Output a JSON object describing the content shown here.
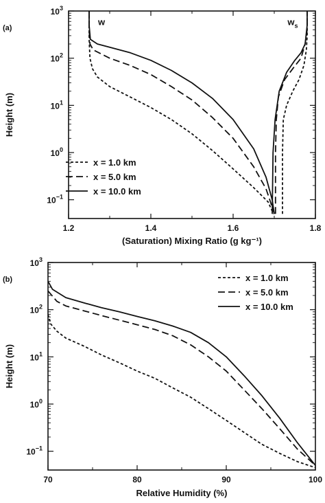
{
  "chart_data": [
    {
      "type": "line",
      "panel_label": "(a)",
      "xlabel": "(Saturation) Mixing Ratio (g kg⁻¹)",
      "ylabel": "Height (m)",
      "xlim": [
        1.2,
        1.8
      ],
      "ylim": [
        0.04,
        1000
      ],
      "yscale": "log",
      "xticks": [
        {
          "value": 1.2,
          "label": "1.2"
        },
        {
          "value": 1.4,
          "label": "1.4"
        },
        {
          "value": 1.6,
          "label": "1.6"
        },
        {
          "value": 1.8,
          "label": "1.8"
        }
      ],
      "yticks": [
        {
          "value": 0.1,
          "base": "10",
          "exp": "−1"
        },
        {
          "value": 1,
          "base": "10",
          "exp": "0"
        },
        {
          "value": 10,
          "base": "10",
          "exp": "1"
        },
        {
          "value": 100,
          "base": "10",
          "exp": "2"
        },
        {
          "value": 1000,
          "base": "10",
          "exp": "3"
        }
      ],
      "annotations": [
        {
          "text": "w",
          "sub": "",
          "x": 1.28,
          "y": 500
        },
        {
          "text": "w",
          "sub": "s",
          "x": 1.745,
          "y": 500
        }
      ],
      "legend": {
        "position": "lower-left"
      },
      "series": [
        {
          "name": "x = 1.0 km",
          "dash": "short",
          "curve": "w",
          "points": [
            [
              1.25,
              1000
            ],
            [
              1.25,
              250
            ],
            [
              1.252,
              100
            ],
            [
              1.258,
              60
            ],
            [
              1.27,
              40
            ],
            [
              1.3,
              25
            ],
            [
              1.35,
              15
            ],
            [
              1.4,
              9
            ],
            [
              1.45,
              5
            ],
            [
              1.5,
              2.5
            ],
            [
              1.55,
              1.1
            ],
            [
              1.6,
              0.45
            ],
            [
              1.65,
              0.18
            ],
            [
              1.685,
              0.09
            ],
            [
              1.698,
              0.05
            ]
          ]
        },
        {
          "name": "x = 5.0 km",
          "dash": "long",
          "curve": "w",
          "points": [
            [
              1.25,
              1000
            ],
            [
              1.25,
              400
            ],
            [
              1.252,
              200
            ],
            [
              1.26,
              150
            ],
            [
              1.3,
              100
            ],
            [
              1.35,
              70
            ],
            [
              1.4,
              45
            ],
            [
              1.45,
              25
            ],
            [
              1.5,
              13
            ],
            [
              1.55,
              5.5
            ],
            [
              1.6,
              2
            ],
            [
              1.65,
              0.5
            ],
            [
              1.68,
              0.17
            ],
            [
              1.695,
              0.07
            ],
            [
              1.7,
              0.05
            ]
          ]
        },
        {
          "name": "x = 10.0 km",
          "dash": "solid",
          "curve": "w",
          "points": [
            [
              1.25,
              1000
            ],
            [
              1.25,
              500
            ],
            [
              1.253,
              250
            ],
            [
              1.27,
              200
            ],
            [
              1.3,
              170
            ],
            [
              1.35,
              130
            ],
            [
              1.4,
              90
            ],
            [
              1.45,
              55
            ],
            [
              1.5,
              30
            ],
            [
              1.55,
              14
            ],
            [
              1.6,
              5
            ],
            [
              1.65,
              1.2
            ],
            [
              1.68,
              0.3
            ],
            [
              1.695,
              0.1
            ],
            [
              1.7,
              0.05
            ]
          ]
        },
        {
          "name": "x = 1.0 km",
          "dash": "short",
          "curve": "ws",
          "points": [
            [
              1.72,
              0.05
            ],
            [
              1.72,
              1
            ],
            [
              1.722,
              5
            ],
            [
              1.73,
              10
            ],
            [
              1.745,
              20
            ],
            [
              1.76,
              35
            ],
            [
              1.772,
              70
            ],
            [
              1.778,
              150
            ],
            [
              1.78,
              300
            ],
            [
              1.78,
              1000
            ]
          ]
        },
        {
          "name": "x = 5.0 km",
          "dash": "long",
          "curve": "ws",
          "points": [
            [
              1.703,
              0.05
            ],
            [
              1.703,
              1
            ],
            [
              1.705,
              5
            ],
            [
              1.71,
              15
            ],
            [
              1.725,
              35
            ],
            [
              1.745,
              60
            ],
            [
              1.765,
              100
            ],
            [
              1.775,
              200
            ],
            [
              1.78,
              400
            ],
            [
              1.78,
              1000
            ]
          ]
        },
        {
          "name": "x = 10.0 km",
          "dash": "solid",
          "curve": "ws",
          "points": [
            [
              1.695,
              0.05
            ],
            [
              1.697,
              1
            ],
            [
              1.702,
              5
            ],
            [
              1.712,
              20
            ],
            [
              1.73,
              50
            ],
            [
              1.75,
              90
            ],
            [
              1.765,
              130
            ],
            [
              1.775,
              200
            ],
            [
              1.78,
              500
            ],
            [
              1.78,
              1000
            ]
          ]
        }
      ]
    },
    {
      "type": "line",
      "panel_label": "(b)",
      "xlabel": "Relative Humidity (%)",
      "ylabel": "Height (m)",
      "xlim": [
        70,
        100
      ],
      "ylim": [
        0.04,
        1000
      ],
      "yscale": "log",
      "xticks": [
        {
          "value": 70,
          "label": "70"
        },
        {
          "value": 80,
          "label": "80"
        },
        {
          "value": 90,
          "label": "90"
        },
        {
          "value": 100,
          "label": "100"
        }
      ],
      "yticks": [
        {
          "value": 0.1,
          "base": "10",
          "exp": "−1"
        },
        {
          "value": 1,
          "base": "10",
          "exp": "0"
        },
        {
          "value": 10,
          "base": "10",
          "exp": "1"
        },
        {
          "value": 100,
          "base": "10",
          "exp": "2"
        },
        {
          "value": 1000,
          "base": "10",
          "exp": "3"
        }
      ],
      "legend": {
        "position": "upper-right"
      },
      "series": [
        {
          "name": "x = 1.0 km",
          "dash": "short",
          "points": [
            [
              70,
              80
            ],
            [
              70.3,
              50
            ],
            [
              71,
              35
            ],
            [
              72,
              25
            ],
            [
              74,
              17
            ],
            [
              76,
              11
            ],
            [
              78,
              7.5
            ],
            [
              80,
              5
            ],
            [
              82,
              3.5
            ],
            [
              84,
              2.2
            ],
            [
              86,
              1.4
            ],
            [
              88,
              0.8
            ],
            [
              90,
              0.45
            ],
            [
              92,
              0.25
            ],
            [
              94,
              0.14
            ],
            [
              96,
              0.09
            ],
            [
              98,
              0.06
            ],
            [
              100,
              0.045
            ]
          ]
        },
        {
          "name": "x = 5.0 km",
          "dash": "long",
          "points": [
            [
              70,
              250
            ],
            [
              71,
              150
            ],
            [
              72,
              120
            ],
            [
              74,
              95
            ],
            [
              76,
              75
            ],
            [
              78,
              60
            ],
            [
              80,
              48
            ],
            [
              82,
              38
            ],
            [
              84,
              28
            ],
            [
              86,
              18
            ],
            [
              88,
              10
            ],
            [
              90,
              5
            ],
            [
              92,
              2
            ],
            [
              94,
              0.8
            ],
            [
              96,
              0.3
            ],
            [
              98,
              0.11
            ],
            [
              100,
              0.05
            ]
          ]
        },
        {
          "name": "x = 10.0 km",
          "dash": "solid",
          "points": [
            [
              70,
              400
            ],
            [
              70.5,
              270
            ],
            [
              72,
              180
            ],
            [
              74,
              140
            ],
            [
              76,
              110
            ],
            [
              78,
              90
            ],
            [
              80,
              72
            ],
            [
              82,
              58
            ],
            [
              84,
              45
            ],
            [
              86,
              33
            ],
            [
              88,
              20
            ],
            [
              90,
              10
            ],
            [
              92,
              4
            ],
            [
              94,
              1.5
            ],
            [
              96,
              0.5
            ],
            [
              98,
              0.15
            ],
            [
              100,
              0.05
            ]
          ]
        }
      ]
    }
  ]
}
